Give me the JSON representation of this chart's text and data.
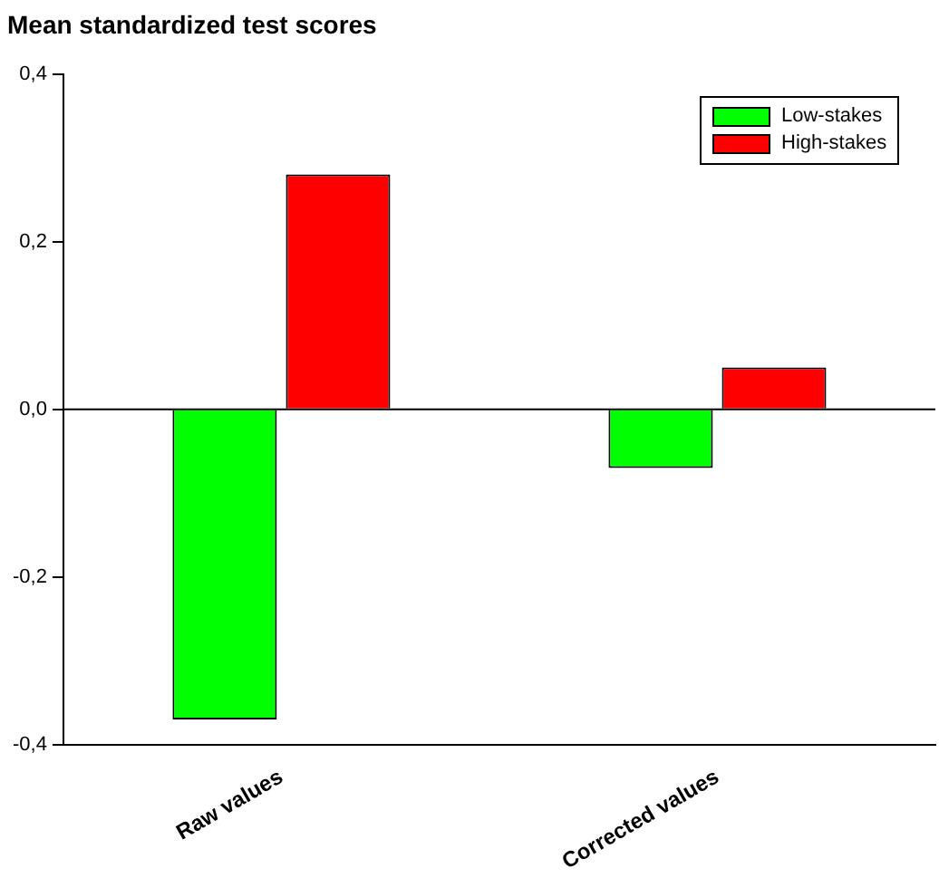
{
  "chart_data": {
    "type": "bar",
    "title": "Mean standardized test scores",
    "categories": [
      "Raw values",
      "Corrected values"
    ],
    "series": [
      {
        "name": "Low-stakes",
        "color": "#00ff00",
        "values": [
          -0.37,
          -0.07
        ]
      },
      {
        "name": "High-stakes",
        "color": "#ff0000",
        "values": [
          0.28,
          0.05
        ]
      }
    ],
    "ylim": [
      -0.4,
      0.4
    ],
    "yticks": [
      {
        "value": -0.4,
        "label": "-0,4"
      },
      {
        "value": -0.2,
        "label": "-0,2"
      },
      {
        "value": 0,
        "label": "0,0"
      },
      {
        "value": 0.2,
        "label": "0,2"
      },
      {
        "value": 0.4,
        "label": "0,4"
      }
    ],
    "ref_lines": [
      {
        "axis": "y",
        "value": 0,
        "color": "#000000"
      }
    ],
    "grid": false,
    "legend": "top right"
  }
}
